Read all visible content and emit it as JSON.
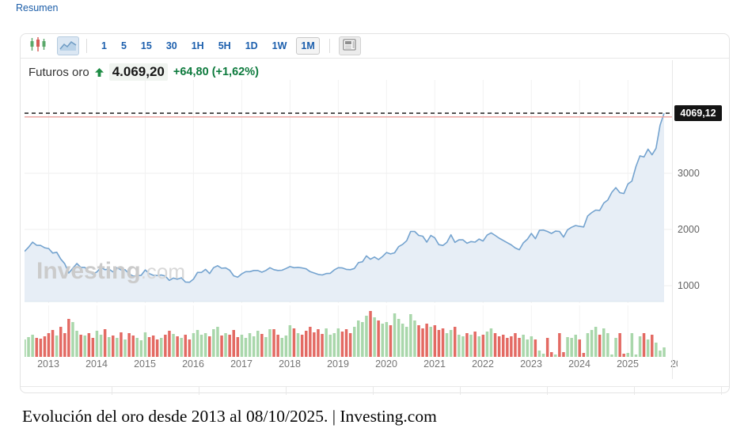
{
  "nav": {
    "resumen_label": "Resumen"
  },
  "toolbar": {
    "chart_types": [
      {
        "name": "candlestick-chart",
        "selected": false
      },
      {
        "name": "area-chart",
        "selected": true
      }
    ],
    "intervals": [
      {
        "label": "1",
        "selected": false
      },
      {
        "label": "5",
        "selected": false
      },
      {
        "label": "15",
        "selected": false
      },
      {
        "label": "30",
        "selected": false
      },
      {
        "label": "1H",
        "selected": false
      },
      {
        "label": "5H",
        "selected": false
      },
      {
        "label": "1D",
        "selected": false
      },
      {
        "label": "1W",
        "selected": false
      },
      {
        "label": "1M",
        "selected": true
      }
    ],
    "news_icon": "news-layout"
  },
  "quote": {
    "name": "Futuros oro",
    "direction": "up",
    "last": "4.069,20",
    "change": "+64,80",
    "change_pct": "(+1,62%)"
  },
  "watermark": {
    "bold": "Investing",
    "light": ".com"
  },
  "caption": "Evolución del oro desde 2013 al 08/10/2025. | Investing.com",
  "chart_data": {
    "type": "area",
    "title": "Futuros oro (mensual)",
    "freq": "monthly",
    "x_start": "2012-07",
    "x_end": "2025-10",
    "x_ticks": [
      "2013",
      "2014",
      "2015",
      "2016",
      "2017",
      "2018",
      "2019",
      "2020",
      "2021",
      "2022",
      "2023",
      "2024",
      "2025",
      "20"
    ],
    "y_ticks": [
      1000,
      2000,
      3000
    ],
    "ylim": [
      600,
      4400
    ],
    "grid": true,
    "last_price_label": "4069,12",
    "last_price_level": 4069.12,
    "prev_close_level": 4004.4,
    "prices": [
      1610,
      1685,
      1775,
      1720,
      1715,
      1675,
      1660,
      1580,
      1595,
      1475,
      1390,
      1225,
      1310,
      1395,
      1325,
      1325,
      1250,
      1205,
      1245,
      1325,
      1285,
      1295,
      1245,
      1320,
      1280,
      1285,
      1210,
      1170,
      1175,
      1185,
      1280,
      1215,
      1185,
      1180,
      1190,
      1170,
      1095,
      1135,
      1115,
      1140,
      1065,
      1060,
      1115,
      1235,
      1235,
      1290,
      1215,
      1320,
      1355,
      1310,
      1315,
      1275,
      1175,
      1150,
      1210,
      1250,
      1250,
      1270,
      1270,
      1240,
      1270,
      1320,
      1285,
      1270,
      1275,
      1305,
      1340,
      1320,
      1325,
      1315,
      1300,
      1250,
      1225,
      1200,
      1190,
      1215,
      1220,
      1280,
      1320,
      1315,
      1290,
      1285,
      1305,
      1410,
      1425,
      1530,
      1470,
      1510,
      1465,
      1520,
      1590,
      1565,
      1585,
      1695,
      1735,
      1800,
      1965,
      1965,
      1895,
      1880,
      1775,
      1895,
      1850,
      1730,
      1715,
      1770,
      1905,
      1770,
      1815,
      1815,
      1755,
      1785,
      1775,
      1830,
      1795,
      1900,
      1940,
      1895,
      1845,
      1805,
      1765,
      1725,
      1670,
      1640,
      1760,
      1825,
      1930,
      1835,
      1985,
      1990,
      1965,
      1930,
      1970,
      1965,
      1865,
      1995,
      2040,
      2070,
      2055,
      2045,
      2240,
      2300,
      2345,
      2340,
      2470,
      2525,
      2660,
      2745,
      2655,
      2640,
      2810,
      2860,
      3120,
      3310,
      3290,
      3430,
      3330,
      3445,
      3855,
      4069
    ],
    "volumes": [
      22,
      25,
      28,
      24,
      23,
      26,
      30,
      34,
      27,
      38,
      30,
      48,
      44,
      33,
      28,
      27,
      30,
      24,
      33,
      28,
      35,
      25,
      27,
      24,
      31,
      22,
      30,
      27,
      24,
      21,
      31,
      25,
      27,
      22,
      24,
      28,
      33,
      29,
      26,
      24,
      28,
      22,
      30,
      34,
      28,
      30,
      26,
      35,
      38,
      27,
      30,
      28,
      34,
      25,
      28,
      24,
      30,
      26,
      33,
      29,
      25,
      35,
      35,
      28,
      24,
      27,
      40,
      36,
      30,
      28,
      33,
      38,
      31,
      35,
      29,
      36,
      28,
      30,
      36,
      32,
      35,
      30,
      38,
      46,
      44,
      52,
      58,
      50,
      46,
      42,
      44,
      40,
      55,
      48,
      42,
      38,
      54,
      46,
      40,
      36,
      42,
      38,
      40,
      34,
      36,
      30,
      34,
      38,
      28,
      26,
      30,
      28,
      32,
      26,
      28,
      32,
      36,
      30,
      26,
      28,
      24,
      26,
      30,
      24,
      28,
      22,
      26,
      22,
      8,
      4,
      24,
      6,
      3,
      30,
      6,
      25,
      24,
      28,
      22,
      5,
      30,
      34,
      38,
      28,
      36,
      30,
      3,
      24,
      30,
      4,
      5,
      30,
      3,
      26,
      30,
      22,
      28,
      18,
      8,
      12
    ],
    "colors": {
      "line": "#74a3cf",
      "fill": "#e7eef6",
      "grid": "#efefef",
      "vol_up": "#a9d7ab",
      "vol_down": "#e36a63",
      "dashed_line": "#2e2e2e",
      "prev_close_line": "#eba6a2",
      "tag_bg": "#141414",
      "accent_blue": "#1c5fad",
      "quote_green": "#0d7a3d"
    },
    "table_stub_columns": 8
  }
}
